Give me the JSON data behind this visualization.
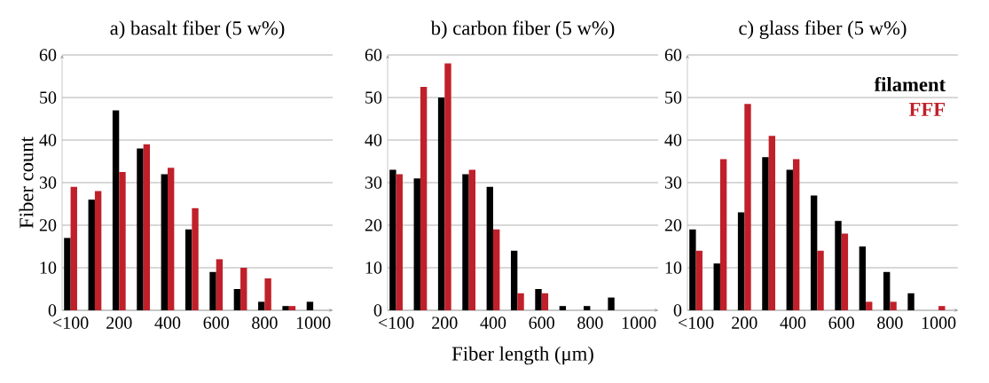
{
  "chart_data": [
    {
      "type": "bar",
      "title": "a) basalt fiber (5 w%)",
      "ylabel": "Fiber count",
      "categories": [
        "<100",
        null,
        "200",
        null,
        "400",
        null,
        "600",
        null,
        "800",
        null,
        "1000"
      ],
      "ylim": [
        0,
        60
      ],
      "yticks": [
        0,
        10,
        20,
        30,
        40,
        50,
        60
      ],
      "grid": "y",
      "series": [
        {
          "color": "#000000",
          "values": [
            17,
            26,
            47,
            38,
            32,
            19,
            9,
            5,
            2,
            1,
            2
          ]
        },
        {
          "color": "#c0202a",
          "values": [
            29,
            28,
            32.5,
            39,
            33.5,
            24,
            12,
            10,
            7.5,
            1,
            null
          ]
        }
      ]
    },
    {
      "type": "bar",
      "title": "b) carbon fiber (5 w%)",
      "xlabel": "Fiber length (μm)",
      "categories": [
        "<100",
        null,
        "200",
        null,
        "400",
        null,
        "600",
        null,
        "800",
        null,
        "1000"
      ],
      "ylim": [
        0,
        60
      ],
      "yticks": [
        0,
        10,
        20,
        30,
        40,
        50,
        60
      ],
      "grid": "y",
      "series": [
        {
          "color": "#000000",
          "values": [
            33,
            31,
            50,
            32,
            29,
            14,
            5,
            1,
            1,
            3,
            null
          ]
        },
        {
          "color": "#c0202a",
          "values": [
            32,
            52.5,
            58,
            33,
            19,
            4,
            4,
            null,
            null,
            null,
            null
          ]
        }
      ]
    },
    {
      "type": "bar",
      "title": "c) glass fiber (5 w%)",
      "categories": [
        "<100",
        null,
        "200",
        null,
        "400",
        null,
        "600",
        null,
        "800",
        null,
        "1000"
      ],
      "ylim": [
        0,
        60
      ],
      "yticks": [
        0,
        10,
        20,
        30,
        40,
        50,
        60
      ],
      "grid": "y",
      "legend": "top right",
      "series": [
        {
          "name": "filament",
          "color": "#000000",
          "values": [
            19,
            11,
            23,
            36,
            33,
            27,
            21,
            15,
            9,
            4,
            null
          ]
        },
        {
          "name": "FFF",
          "color": "#c0202a",
          "values": [
            14,
            35.5,
            48.5,
            41,
            35.5,
            14,
            18,
            2,
            2,
            null,
            1
          ]
        }
      ]
    }
  ]
}
